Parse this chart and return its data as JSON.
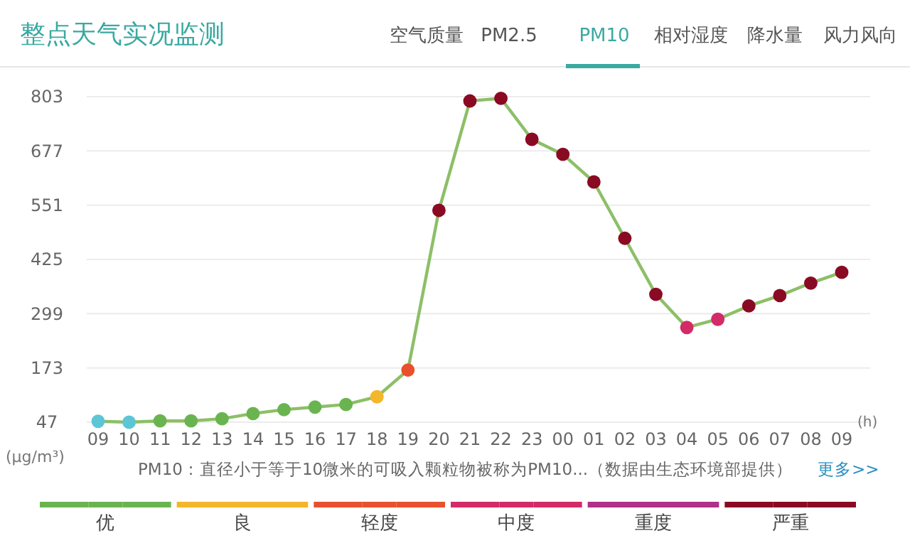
{
  "chart_data": {
    "type": "line",
    "title": "整点天气实况监测",
    "xlabel": "(h)",
    "ylabel": "(μg/m³)",
    "categories": [
      "09",
      "10",
      "11",
      "12",
      "13",
      "14",
      "15",
      "16",
      "17",
      "18",
      "19",
      "20",
      "21",
      "22",
      "23",
      "00",
      "01",
      "02",
      "03",
      "04",
      "05",
      "06",
      "07",
      "08",
      "09"
    ],
    "ylim": [
      47,
      803
    ],
    "yticks": [
      47,
      173,
      299,
      425,
      551,
      677,
      803
    ],
    "grid": "y",
    "marker": "circle",
    "legend": "bottom",
    "series": [
      {
        "color": "#8dbf67",
        "marker": "none",
        "values": [
          49,
          47,
          50,
          50,
          55,
          67,
          76,
          82,
          88,
          106,
          168,
          539,
          793,
          799,
          704,
          669,
          605,
          474,
          344,
          267,
          286,
          317,
          341,
          370,
          395
        ]
      },
      {
        "type": "scatter",
        "color": "#5cc6d6",
        "values": [
          49,
          47,
          null,
          null,
          null,
          null,
          null,
          null,
          null,
          null,
          null,
          null,
          null,
          null,
          null,
          null,
          null,
          null,
          null,
          null,
          null,
          null,
          null,
          null,
          null
        ]
      },
      {
        "type": "scatter",
        "name": "优",
        "color": "#6ab450",
        "values": [
          null,
          null,
          50,
          50,
          55,
          67,
          76,
          82,
          88,
          null,
          null,
          null,
          null,
          null,
          null,
          null,
          null,
          null,
          null,
          null,
          null,
          null,
          null,
          null,
          null
        ]
      },
      {
        "type": "scatter",
        "name": "良",
        "color": "#f4b62a",
        "values": [
          null,
          null,
          null,
          null,
          null,
          null,
          null,
          null,
          null,
          106,
          null,
          null,
          null,
          null,
          null,
          null,
          null,
          null,
          null,
          null,
          null,
          null,
          null,
          null,
          null
        ]
      },
      {
        "type": "scatter",
        "name": "轻度",
        "color": "#e8502e",
        "values": [
          null,
          null,
          null,
          null,
          null,
          null,
          null,
          null,
          null,
          null,
          168,
          null,
          null,
          null,
          null,
          null,
          null,
          null,
          null,
          null,
          null,
          null,
          null,
          null,
          null
        ]
      },
      {
        "type": "scatter",
        "name": "中度",
        "color": "#d42a68",
        "values": [
          null,
          null,
          null,
          null,
          null,
          null,
          null,
          null,
          null,
          null,
          null,
          null,
          null,
          null,
          null,
          null,
          null,
          null,
          null,
          267,
          286,
          null,
          null,
          null,
          null
        ]
      },
      {
        "type": "scatter",
        "name": "重度",
        "color": "#b0308a",
        "values": [
          null,
          null,
          null,
          null,
          null,
          null,
          null,
          null,
          null,
          null,
          null,
          null,
          null,
          null,
          null,
          null,
          null,
          null,
          null,
          null,
          null,
          null,
          null,
          null,
          null
        ]
      },
      {
        "type": "scatter",
        "name": "严重",
        "color": "#8a0a24",
        "values": [
          null,
          null,
          null,
          null,
          null,
          null,
          null,
          null,
          null,
          null,
          null,
          539,
          793,
          799,
          704,
          669,
          605,
          474,
          344,
          null,
          null,
          317,
          341,
          370,
          395
        ]
      }
    ],
    "annotations": [
      "空气质量",
      "PM2.5",
      "PM10",
      "相对湿度",
      "降水量",
      "风力风向",
      "PM10：直径小于等于10微米的可吸入颗粒物被称为PM10...（数据由生态环境部提供）",
      "更多>>"
    ]
  }
}
